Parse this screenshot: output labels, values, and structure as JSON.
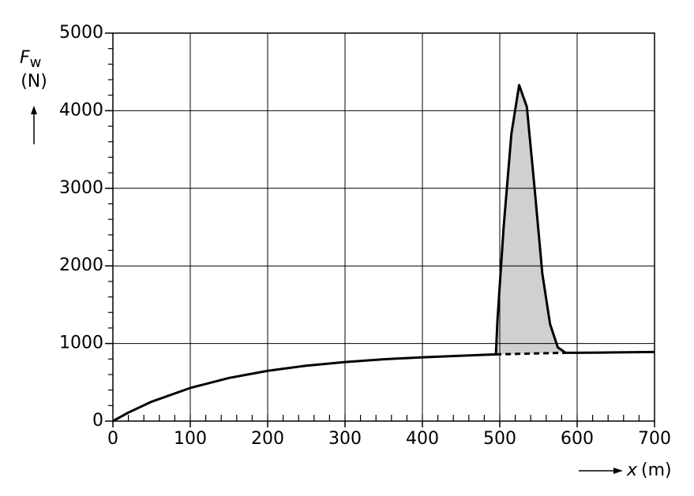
{
  "chart_data": {
    "type": "line",
    "y_label": {
      "symbol": "F",
      "subscript": "w",
      "unit": "(N)"
    },
    "x_label": {
      "symbol": "x",
      "unit": "(m)"
    },
    "series": [
      {
        "style": "solid",
        "color": "#000000",
        "x": [
          0,
          20,
          50,
          100,
          150,
          200,
          250,
          300,
          350,
          400,
          450,
          495,
          497,
          505,
          515,
          525,
          535,
          545,
          555,
          565,
          575,
          585,
          600,
          650,
          700
        ],
        "values": [
          0,
          110,
          250,
          427,
          556,
          648,
          714,
          761,
          797,
          822,
          842,
          860,
          1300,
          2500,
          3700,
          4330,
          4050,
          3000,
          1900,
          1250,
          950,
          880,
          880,
          885,
          890
        ]
      },
      {
        "style": "dashed",
        "color": "#000000",
        "x": [
          495,
          540,
          585
        ],
        "values": [
          860,
          870,
          880
        ]
      }
    ],
    "fill_color": "#d0d0d0",
    "xlim": [
      0,
      700
    ],
    "xticks": [
      0,
      100,
      200,
      300,
      400,
      500,
      600,
      700
    ],
    "x_minor_step": 20,
    "ylim": [
      0,
      5000
    ],
    "yticks": [
      0,
      1000,
      2000,
      3000,
      4000,
      5000
    ],
    "y_minor_step": 200,
    "grid": true
  }
}
